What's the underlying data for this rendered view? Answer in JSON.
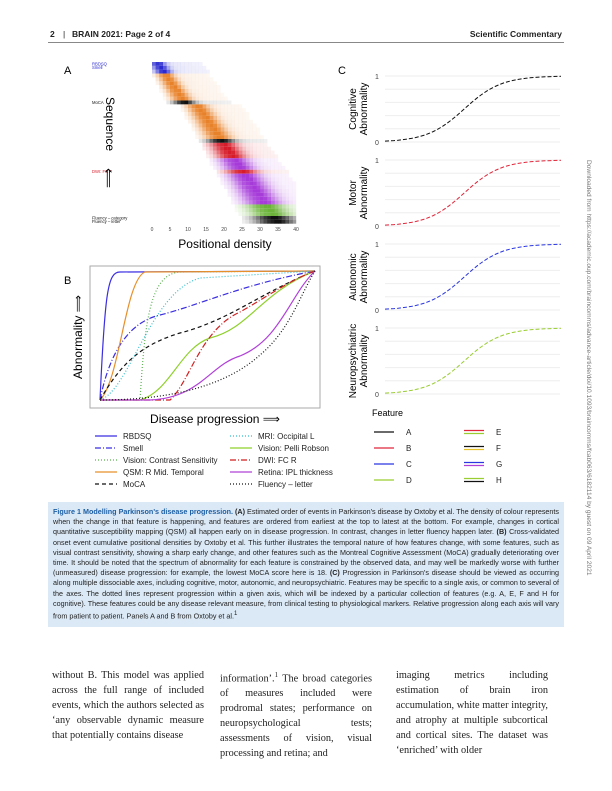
{
  "header": {
    "page": "2",
    "journal": "BRAIN 2021: Page 2 of 4",
    "section": "Scientific Commentary"
  },
  "figure": {
    "panel_a": {
      "label": "A",
      "y_label": "Sequence",
      "y_arrow": "⟸",
      "x_label": "Positional density",
      "x_ticks": [
        0,
        5,
        10,
        15,
        20,
        25,
        30,
        35,
        40
      ],
      "rows": [
        "RBDSQ",
        "Smell",
        "MoCA",
        "DWI: FC R",
        "Fluency – category",
        "Fluency – letter"
      ]
    },
    "panel_b": {
      "label": "B",
      "y_label": "Abnormality ⟹",
      "x_label": "Disease progression ⟹",
      "legend": [
        "RBDSQ",
        "Smell",
        "Vision: Contrast Sensitivity",
        "QSM: R Mid. Temporal",
        "MoCA",
        "MRI: Occipital L",
        "Vision: Pelli Robson",
        "DWI: FC R",
        "Retina: IPL thickness",
        "Fluency – letter"
      ]
    },
    "panel_c": {
      "label": "C",
      "y_ticks": [
        1,
        0
      ],
      "axes": [
        [
          "Cognitive",
          "Abnormality"
        ],
        [
          "Motor",
          "Abnormality"
        ],
        [
          "Autonomic",
          "Abnormality"
        ],
        [
          "Neuropsychiatric",
          "Abnormality"
        ]
      ],
      "legend_title": "Feature",
      "legend": [
        "A",
        "B",
        "C",
        "D",
        "E",
        "F",
        "G",
        "H"
      ]
    }
  },
  "caption": {
    "label": "Figure 1",
    "title": "Modelling Parkinson's disease progression.",
    "a_tag": "(A)",
    "a_text": "Estimated order of events in Parkinson's disease by Oxtoby et al. The density of colour represents when the change in that feature is happening, and features are ordered from earliest at the top to latest at the bottom. For example, changes in cortical quantitative susceptibility mapping (QSM) all happen early on in disease progression. In contrast, changes in letter fluency happen later.",
    "b_tag": "(B)",
    "b_text": "Cross-validated onset event cumulative positional densities by Oxtoby et al. This further illustrates the temporal nature of how features change, with some features, such as visual contrast sensitivity, showing a sharp early change, and other features such as the Montreal Cognitive Assessment (MoCA) gradually deteriorating over time. It should be noted that the spectrum of abnormality for each feature is constrained by the observed data, and may well be markedly worse with further (unmeasured) disease progression: for example, the lowest MoCA score here is 18.",
    "c_tag": "(C)",
    "c_text": "Progression in Parkinson's disease should be viewed as occurring along multiple dissociable axes, including cognitive, motor, autonomic, and neuropsychiatric. Features may be specific to a single axis, or common to several of the axes. The dotted lines represent progression within a given axis, which will be indexed by a particular collection of features (e.g. A, E, F and H for cognitive). These features could be any disease relevant measure, from clinical testing to physiological markers. Relative progression along each axis will vary from patient to patient.",
    "credit": "Panels A and B from Oxtoby et al.",
    "credit_ref": "1"
  },
  "body": {
    "col1": "without B. This model was applied across the full range of included events, which the authors selected as ‘any observable dynamic measure that potentially contains disease",
    "col2_a": "information’.",
    "col2_ref": "1",
    "col2_b": "The broad categories of measures included were prodromal states; performance on neuropsychological tests; assessments of vision, visual processing and retina; and",
    "col3": "imaging metrics including estimation of brain iron accumulation, white matter integrity, and atrophy at multiple subcortical and cortical sites. The dataset was ‘enriched’ with older"
  },
  "side_note": "Downloaded from https://academic.oup.com/braincomms/advance-article/doi/10.1093/braincomms/fcab063/6182114 by guest on 09 April 2021"
}
